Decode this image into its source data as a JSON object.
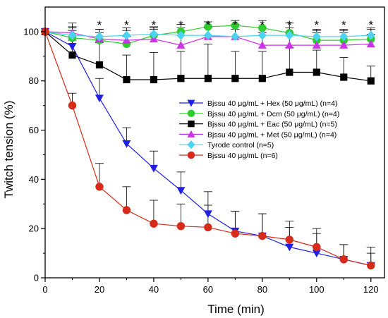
{
  "chart_data": {
    "type": "line",
    "xlabel": "Time (min)",
    "ylabel": "Twitch tension (%)",
    "xlim": [
      0,
      125
    ],
    "ylim": [
      0,
      110
    ],
    "xticks": [
      0,
      20,
      40,
      60,
      80,
      100,
      120
    ],
    "yticks": [
      0,
      20,
      40,
      60,
      80,
      100
    ],
    "significance_marker": "*",
    "significance_x": [
      20,
      30,
      40,
      50,
      60,
      70,
      80,
      90,
      100,
      110,
      120
    ],
    "legend_position": "center-right",
    "series": [
      {
        "name": "Bjssu 40 μg/mL + Hex (50 μg/mL)  (n=4)",
        "marker": "triangle-down",
        "color": "#1f1fe6",
        "x": [
          0,
          10,
          20,
          30,
          40,
          50,
          60,
          70,
          80,
          90,
          100,
          110,
          120
        ],
        "y": [
          100,
          94,
          73,
          54.5,
          44.5,
          35.5,
          26,
          19,
          17,
          12.5,
          10,
          7.5,
          5
        ],
        "err": [
          0,
          8,
          8,
          6.5,
          7,
          7.5,
          9,
          8,
          9,
          8,
          8,
          6,
          5
        ]
      },
      {
        "name": "Bjssu 40 μg/mL + Dcm (50 μg/mL)  (n=4)",
        "marker": "circle",
        "color": "#2ecc2e",
        "x": [
          0,
          10,
          20,
          30,
          40,
          50,
          60,
          70,
          80,
          90,
          100,
          110,
          120
        ],
        "y": [
          100,
          97.5,
          96.5,
          95,
          98.5,
          100,
          102,
          102.5,
          101.5,
          99.5,
          96.5,
          96.5,
          97
        ],
        "err": [
          0,
          4,
          3,
          3,
          3,
          3,
          2,
          2,
          3,
          4,
          4,
          4,
          4
        ]
      },
      {
        "name": "Bjssu 40 μg/mL + Eac (50 μg/mL)  (n=5)",
        "marker": "square",
        "color": "#000000",
        "x": [
          0,
          10,
          20,
          30,
          40,
          50,
          60,
          70,
          80,
          90,
          100,
          110,
          120
        ],
        "y": [
          100,
          90.5,
          86.5,
          80.5,
          80.5,
          81,
          81,
          81,
          81,
          83.5,
          83.5,
          81.5,
          80
        ],
        "err": [
          0,
          6,
          9,
          10,
          11,
          11,
          14,
          11,
          11,
          10,
          9,
          8,
          6
        ]
      },
      {
        "name": "Bjssu 40 μg/mL + Met (50 μg/mL)  (n=4)",
        "marker": "triangle-up",
        "color": "#cc33e6",
        "x": [
          0,
          10,
          20,
          30,
          40,
          50,
          60,
          70,
          80,
          90,
          100,
          110,
          120
        ],
        "y": [
          100,
          99.5,
          97,
          96.5,
          97,
          94.5,
          98,
          98,
          94.5,
          94.5,
          94.5,
          94.5,
          95
        ],
        "err": [
          0,
          4,
          4,
          4,
          4,
          4,
          4,
          5,
          5,
          5,
          5,
          5,
          4
        ]
      },
      {
        "name": "Tyrode control   (n=5)",
        "marker": "diamond",
        "color": "#4dd2f0",
        "x": [
          0,
          10,
          20,
          30,
          40,
          50,
          60,
          70,
          80,
          90,
          100,
          110,
          120
        ],
        "y": [
          100,
          98.5,
          98,
          98.5,
          99,
          98.5,
          98.5,
          98,
          98.5,
          98.5,
          98,
          98,
          98.5
        ],
        "err": [
          0,
          2,
          3,
          3,
          3,
          3,
          3,
          3,
          3,
          3,
          3,
          3,
          3
        ]
      },
      {
        "name": "Bjssu 40 μg/mL  (n=6)",
        "marker": "circle",
        "color": "#d62a1a",
        "x": [
          0,
          10,
          20,
          30,
          40,
          50,
          60,
          70,
          80,
          90,
          100,
          110,
          120
        ],
        "y": [
          100,
          70,
          37,
          27.5,
          22,
          21,
          20.5,
          18,
          17,
          15.5,
          12.5,
          7.5,
          5
        ],
        "err": [
          0,
          5,
          9.5,
          9.5,
          9.5,
          9,
          9,
          9,
          9,
          7.5,
          7.5,
          6,
          7.5
        ]
      }
    ]
  }
}
